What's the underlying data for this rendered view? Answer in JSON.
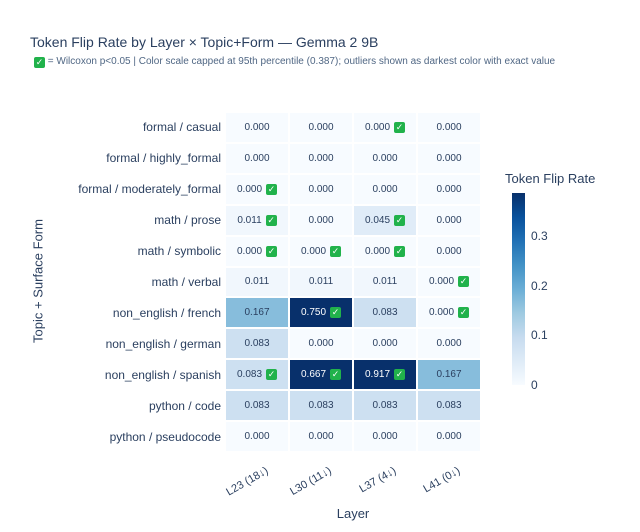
{
  "title": "Token Flip Rate by Layer × Topic+Form — Gemma 2 9B",
  "subtitle": {
    "icon": "check-icon",
    "text": "= Wilcoxon p<0.05  |  Color scale capped at 95th percentile (0.387); outliers shown as darkest color with exact value"
  },
  "icons": {
    "check_glyph": "✓"
  },
  "colors": {
    "check_green": "#21b24b",
    "text_dark": "#2a3f5f",
    "subtitle_gray": "#506784",
    "cell_text_light": "#ffffff"
  },
  "chart_data": {
    "type": "heatmap",
    "title": "Token Flip Rate by Layer × Topic+Form — Gemma 2 9B",
    "xlabel": "Layer",
    "ylabel": "Topic + Surface Form",
    "x_categories": [
      "L23 (18↓)",
      "L30 (11↓)",
      "L37 (4↓)",
      "L41 (0↓)"
    ],
    "y_categories": [
      "formal / casual",
      "formal / highly_formal",
      "formal / moderately_formal",
      "math / prose",
      "math / symbolic",
      "math / verbal",
      "non_english / french",
      "non_english / german",
      "non_english / spanish",
      "python / code",
      "python / pseudocode"
    ],
    "values": [
      [
        0.0,
        0.0,
        0.0,
        0.0
      ],
      [
        0.0,
        0.0,
        0.0,
        0.0
      ],
      [
        0.0,
        0.0,
        0.0,
        0.0
      ],
      [
        0.011,
        0.0,
        0.045,
        0.0
      ],
      [
        0.0,
        0.0,
        0.0,
        0.0
      ],
      [
        0.011,
        0.011,
        0.011,
        0.0
      ],
      [
        0.167,
        0.75,
        0.083,
        0.0
      ],
      [
        0.083,
        0.0,
        0.0,
        0.0
      ],
      [
        0.083,
        0.667,
        0.917,
        0.167
      ],
      [
        0.083,
        0.083,
        0.083,
        0.083
      ],
      [
        0.0,
        0.0,
        0.0,
        0.0
      ]
    ],
    "significant": [
      [
        false,
        false,
        true,
        false
      ],
      [
        false,
        false,
        false,
        false
      ],
      [
        true,
        false,
        false,
        false
      ],
      [
        true,
        false,
        true,
        false
      ],
      [
        true,
        true,
        true,
        false
      ],
      [
        false,
        false,
        false,
        true
      ],
      [
        false,
        true,
        false,
        true
      ],
      [
        false,
        false,
        false,
        false
      ],
      [
        true,
        true,
        true,
        false
      ],
      [
        false,
        false,
        false,
        false
      ],
      [
        false,
        false,
        false,
        false
      ]
    ],
    "value_format_decimals": 3,
    "colorbar": {
      "title": "Token Flip Rate",
      "cap": 0.387,
      "tick_values": [
        0,
        0.1,
        0.2,
        0.3
      ],
      "tick_labels": [
        "0",
        "0.1",
        "0.2",
        "0.3"
      ],
      "position": "right"
    },
    "colorscale": {
      "name": "Blues",
      "stops": [
        "#f7fbff",
        "#deebf7",
        "#c6dbef",
        "#9ecae1",
        "#6baed6",
        "#4292c6",
        "#2171b5",
        "#08519c",
        "#08306b"
      ]
    },
    "grid": false,
    "legend_position": "none"
  }
}
